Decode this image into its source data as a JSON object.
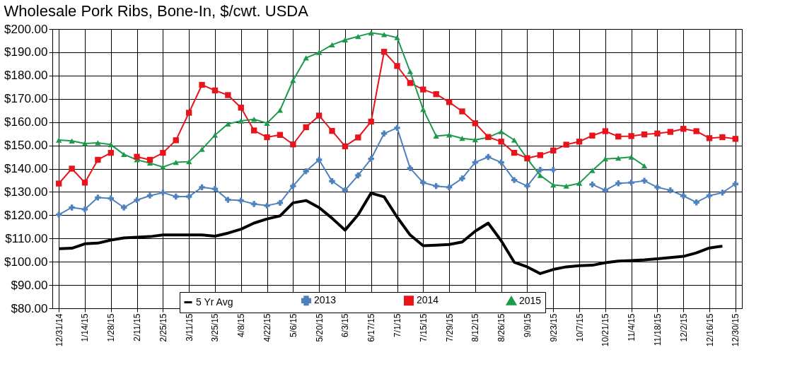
{
  "chart_data": {
    "type": "line",
    "title": "Wholesale Pork Ribs, Bone-In, $/cwt. USDA",
    "categories": [
      "12/31/14",
      null,
      "1/14/15",
      null,
      "1/28/15",
      null,
      "2/11/15",
      null,
      "2/25/15",
      null,
      "3/11/15",
      null,
      "3/25/15",
      null,
      "4/8/15",
      null,
      "4/22/15",
      null,
      "5/6/15",
      null,
      "5/20/15",
      null,
      "6/3/15",
      null,
      "6/17/15",
      null,
      "7/1/15",
      null,
      "7/15/15",
      null,
      "7/29/15",
      null,
      "8/12/15",
      null,
      "8/26/15",
      null,
      "9/9/15",
      null,
      "9/23/15",
      null,
      "10/7/15",
      null,
      "10/21/15",
      null,
      "11/4/15",
      null,
      "11/18/15",
      null,
      "12/2/15",
      null,
      "12/16/15",
      null,
      "12/30/15"
    ],
    "ylim": [
      80,
      200
    ],
    "yticks": [
      {
        "value": 80,
        "label": "$80.00"
      },
      {
        "value": 90,
        "label": "$90.00"
      },
      {
        "value": 100,
        "label": "$100.00"
      },
      {
        "value": 110,
        "label": "$110.00"
      },
      {
        "value": 120,
        "label": "$120.00"
      },
      {
        "value": 130,
        "label": "$130.00"
      },
      {
        "value": 140,
        "label": "$140.00"
      },
      {
        "value": 150,
        "label": "$150.00"
      },
      {
        "value": 160,
        "label": "$160.00"
      },
      {
        "value": 170,
        "label": "$170.00"
      },
      {
        "value": 180,
        "label": "$180.00"
      },
      {
        "value": 190,
        "label": "$190.00"
      },
      {
        "value": 200,
        "label": "$200.00"
      }
    ],
    "grid": true,
    "legend": "bottom",
    "series": [
      {
        "name": "5 Yr Avg",
        "color": "#000000",
        "marker": "none",
        "values": [
          105.6,
          105.8,
          107.7,
          108,
          109.3,
          110.2,
          110.5,
          110.8,
          111.5,
          111.5,
          111.5,
          111.5,
          111,
          112.3,
          114,
          116.6,
          118.4,
          119.7,
          125.3,
          126.3,
          123.3,
          118.7,
          113.6,
          120.2,
          129.5,
          127.9,
          119.2,
          111.5,
          106.9,
          107.1,
          107.4,
          108.5,
          113.1,
          116.6,
          109,
          99.8,
          97.8,
          94.9,
          96.7,
          97.8,
          98.3,
          98.5,
          99.6,
          100.3,
          100.5,
          100.8,
          101.3,
          101.8,
          102.3,
          103.8,
          105.9,
          106.7,
          null
        ]
      },
      {
        "name": "2013",
        "color": "#4f81bd",
        "marker": "cross",
        "values": [
          120.2,
          123.3,
          122.5,
          127.6,
          127.2,
          123.3,
          126.5,
          128.4,
          129.7,
          128,
          128,
          132,
          131.3,
          126.6,
          126.3,
          124.8,
          124.1,
          125.3,
          132.5,
          138.9,
          143.8,
          134.6,
          130.7,
          137.1,
          144.2,
          155.1,
          157.5,
          140.2,
          134,
          132.5,
          132,
          135.8,
          142.7,
          145,
          142.7,
          135.1,
          132.5,
          139.5,
          139.5,
          null,
          null,
          133.2,
          130.7,
          133.7,
          134,
          134.8,
          132,
          130.7,
          128.3,
          125.5,
          128.4,
          129.7,
          133.4
        ]
      },
      {
        "name": "2014",
        "color": "#e8141c",
        "marker": "square",
        "values": [
          133.6,
          140,
          134,
          143.8,
          146.8,
          null,
          145.1,
          143.8,
          146.8,
          152.2,
          164,
          176,
          173.6,
          171.6,
          166.2,
          156.4,
          153.5,
          154.5,
          150.4,
          157.8,
          162.8,
          156.2,
          149.6,
          153.4,
          160.2,
          190.2,
          184.1,
          176.8,
          174,
          172,
          168.6,
          164.6,
          159.5,
          153.6,
          151.6,
          146.8,
          144.5,
          145.8,
          147.8,
          150.3,
          151.6,
          154.2,
          156.1,
          153.8,
          154,
          154.7,
          155.1,
          155.8,
          157.1,
          156.1,
          153.1,
          153.5,
          152.8
        ]
      },
      {
        "name": "2015",
        "color": "#1c9a4c",
        "marker": "triangle",
        "values": [
          152.3,
          151.9,
          150.8,
          151.1,
          150.3,
          146.1,
          143.8,
          142.4,
          140.7,
          142.7,
          143,
          148.3,
          154.4,
          159.2,
          160.5,
          161.2,
          159.5,
          165.1,
          177.9,
          187.6,
          189.9,
          193.2,
          195.3,
          196.8,
          198.3,
          197.6,
          196.3,
          181.7,
          165.5,
          154,
          154.5,
          153,
          152.4,
          153.4,
          155.9,
          152.3,
          144.2,
          137.1,
          133,
          132.5,
          133.7,
          139.2,
          144.2,
          144.5,
          145,
          141.2,
          null,
          null,
          null,
          null,
          null,
          null,
          null
        ]
      }
    ]
  }
}
